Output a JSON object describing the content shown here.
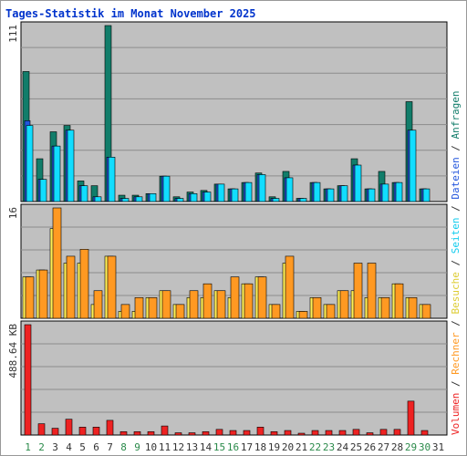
{
  "chart_data": {
    "type": "bar",
    "title": "Tages-Statistik im Monat November 2025",
    "x": [
      "1",
      "2",
      "3",
      "4",
      "5",
      "6",
      "7",
      "8",
      "9",
      "10",
      "11",
      "12",
      "13",
      "14",
      "15",
      "16",
      "17",
      "18",
      "19",
      "20",
      "21",
      "22",
      "23",
      "24",
      "25",
      "26",
      "27",
      "28",
      "29",
      "30",
      "31"
    ],
    "weekend_days": [
      "1",
      "2",
      "8",
      "9",
      "15",
      "16",
      "22",
      "23",
      "29",
      "30"
    ],
    "colors": {
      "title": "#0033cc",
      "weekday_label": "#333333",
      "weekend_label": "#2a8a4a",
      "panel_bg": "#c0c0c0",
      "grid": "#8c8c8c",
      "anfragen": "#117d6a",
      "dateien": "#2255dd",
      "seiten": "#11ddff",
      "besuche": "#ffee55",
      "rechner": "#ff9922",
      "volumen": "#ee2222"
    },
    "panels": [
      {
        "id": "hits",
        "max_label": "111",
        "max": 111,
        "series": [
          {
            "name": "Anfragen",
            "values": [
              82,
              27,
              44,
              48,
              13,
              10,
              111,
              4,
              4,
              5,
              16,
              3,
              6,
              7,
              11,
              8,
              12,
              18,
              3,
              19,
              2,
              12,
              8,
              10,
              27,
              8,
              19,
              12,
              63,
              8,
              0
            ]
          },
          {
            "name": "Dateien",
            "values": [
              51,
              14,
              35,
              45,
              10,
              3,
              28,
              2,
              3,
              5,
              16,
              2,
              5,
              6,
              11,
              8,
              12,
              17,
              2,
              15,
              2,
              12,
              8,
              10,
              23,
              8,
              11,
              12,
              45,
              8,
              0
            ]
          },
          {
            "name": "Seiten",
            "values": [
              48,
              14,
              35,
              45,
              10,
              3,
              28,
              2,
              3,
              5,
              16,
              2,
              5,
              6,
              11,
              8,
              12,
              17,
              2,
              15,
              2,
              12,
              8,
              10,
              23,
              8,
              11,
              12,
              45,
              8,
              0
            ]
          }
        ]
      },
      {
        "id": "visits",
        "max_label": "16",
        "max": 16,
        "series": [
          {
            "name": "Besuche",
            "values": [
              6,
              7,
              13,
              8,
              8,
              2,
              9,
              1,
              1,
              3,
              4,
              2,
              3,
              3,
              4,
              3,
              5,
              6,
              2,
              8,
              1,
              3,
              2,
              4,
              4,
              3,
              3,
              5,
              3,
              2,
              0
            ]
          },
          {
            "name": "Rechner",
            "values": [
              6,
              7,
              16,
              9,
              10,
              4,
              9,
              2,
              3,
              3,
              4,
              2,
              4,
              5,
              4,
              6,
              5,
              6,
              2,
              9,
              1,
              3,
              2,
              4,
              8,
              8,
              3,
              5,
              3,
              2,
              0
            ]
          }
        ]
      },
      {
        "id": "volume",
        "max_label": "488.64 KB",
        "max": 488.64,
        "series": [
          {
            "name": "Volumen",
            "values": [
              488.64,
              50,
              30,
              70,
              35,
              35,
              65,
              15,
              15,
              15,
              40,
              10,
              10,
              15,
              25,
              20,
              20,
              35,
              15,
              20,
              8,
              20,
              20,
              20,
              25,
              10,
              25,
              25,
              150,
              20,
              0
            ]
          }
        ]
      }
    ],
    "legend_right": [
      {
        "text": "Volumen",
        "color": "#ee2222"
      },
      {
        "text": " / ",
        "color": "#333333"
      },
      {
        "text": "Rechner",
        "color": "#ff9922"
      },
      {
        "text": " / ",
        "color": "#333333"
      },
      {
        "text": "Besuche",
        "color": "#ddcc33"
      },
      {
        "text": " / ",
        "color": "#333333"
      },
      {
        "text": "Seiten",
        "color": "#11ccee"
      },
      {
        "text": " / ",
        "color": "#333333"
      },
      {
        "text": "Dateien",
        "color": "#2255dd"
      },
      {
        "text": " / ",
        "color": "#333333"
      },
      {
        "text": "Anfragen",
        "color": "#117d6a"
      }
    ]
  }
}
